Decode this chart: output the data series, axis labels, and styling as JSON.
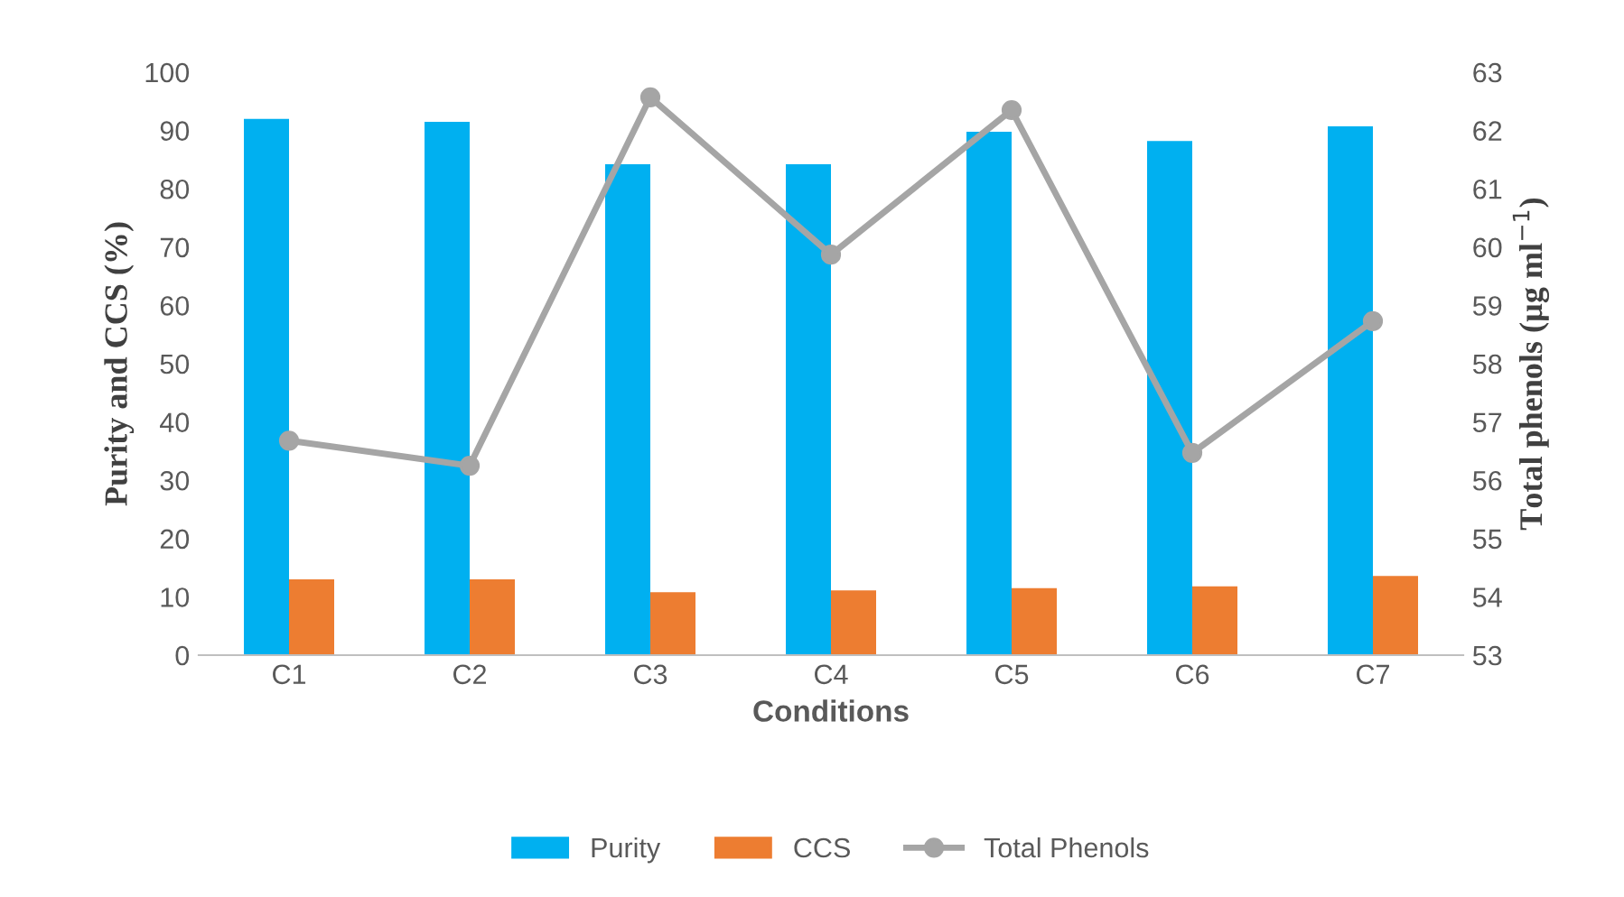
{
  "chart_data": {
    "type": "bar",
    "xlabel": "Conditions",
    "ylabel": "Purity and CCS (%)",
    "y2label": "Total phenols (µg ml$^{−1}$)",
    "categories": [
      "C1",
      "C2",
      "C3",
      "C4",
      "C5",
      "C6",
      "C7"
    ],
    "series": [
      {
        "name": "Purity",
        "color": "#00b0f0",
        "values": [
          92,
          91.5,
          84.2,
          84.2,
          89.8,
          88.2,
          90.7
        ]
      },
      {
        "name": "CCS",
        "color": "#ed7d31",
        "values": [
          13,
          13,
          10.8,
          11.1,
          11.5,
          11.8,
          13.6
        ]
      },
      {
        "name": "Total Phenols",
        "type": "line",
        "axis": "y2",
        "color": "#a5a5a5",
        "marker": "circle",
        "values": [
          56.68,
          56.25,
          62.57,
          59.87,
          62.35,
          56.47,
          58.73
        ]
      }
    ],
    "ylim": [
      0,
      100
    ],
    "yticks": [
      0,
      10,
      20,
      30,
      40,
      50,
      60,
      70,
      80,
      90,
      100
    ],
    "y2lim": [
      53,
      63
    ],
    "y2ticks": [
      53,
      54,
      55,
      56,
      57,
      58,
      59,
      60,
      61,
      62,
      63
    ],
    "grid": false,
    "legend": "bottom"
  }
}
